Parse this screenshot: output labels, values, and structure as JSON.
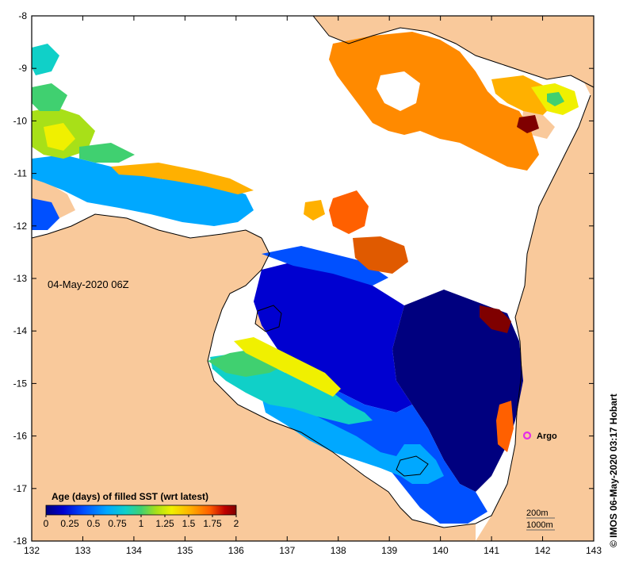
{
  "map": {
    "date_label": "04-May-2020 06Z",
    "credit": "© IMOS 06-May-2020 03:17 Hobart",
    "x_ticks": [
      "132",
      "133",
      "134",
      "135",
      "136",
      "137",
      "138",
      "139",
      "140",
      "141",
      "142",
      "143"
    ],
    "y_ticks": [
      "-8",
      "-9",
      "-10",
      "-11",
      "-12",
      "-13",
      "-14",
      "-15",
      "-16",
      "-17",
      "-18"
    ],
    "land_color": "#f9c99b",
    "no_data_color": "#ffffff",
    "argo": {
      "label": "Argo",
      "color": "#e62ee6"
    },
    "contours": [
      "200m",
      "1000m"
    ]
  },
  "colorbar": {
    "title": "Age (days) of filled SST (wrt latest)",
    "ticks": [
      "0",
      "0.25",
      "0.5",
      "0.75",
      "1",
      "1.25",
      "1.5",
      "1.75",
      "2"
    ],
    "colors": [
      "#00007f",
      "#0000d0",
      "#0050ff",
      "#00a8ff",
      "#10d0c8",
      "#40d070",
      "#a8e018",
      "#f0f000",
      "#ffb000",
      "#ff6000",
      "#c00000",
      "#7f0000"
    ]
  }
}
